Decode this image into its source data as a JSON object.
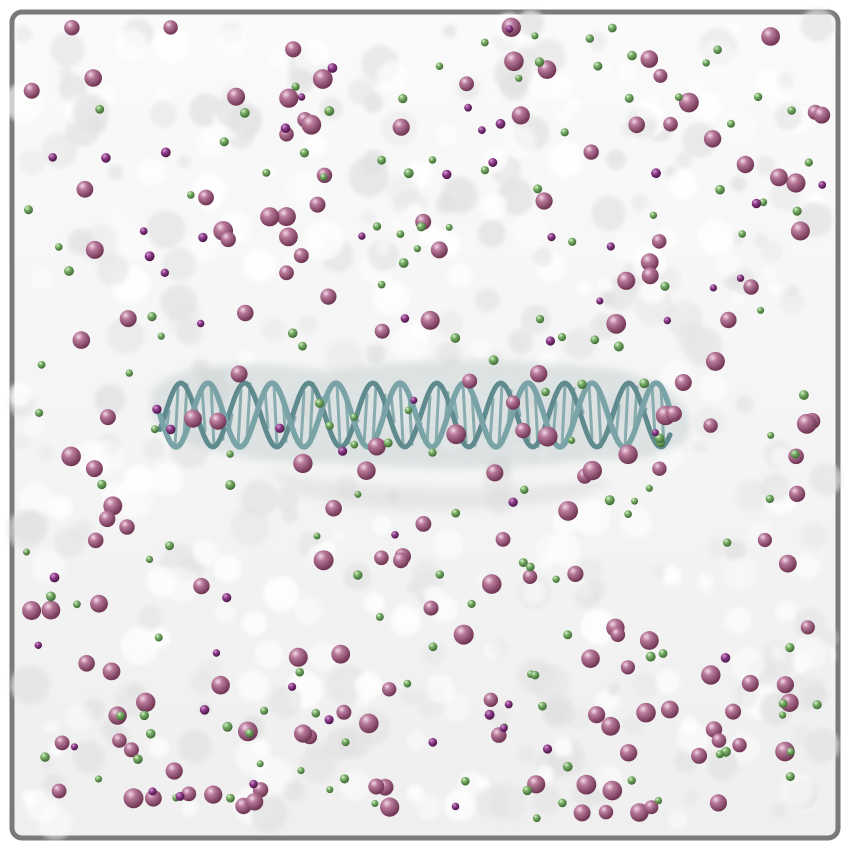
{
  "scene": {
    "description_role": "molecular-dynamics-render",
    "background": "#ffffff",
    "box_border": "#7a7a7a",
    "water_surface": "#f2f2f2",
    "water_shadow": "#c8c8c8",
    "dna_color": "#6f9a9e",
    "dna_surface": "#bfc9ca",
    "ion_large_color": "#a2607f",
    "ion_small_color": "#6aa05a",
    "ion_dark_color": "#7b2f76"
  }
}
